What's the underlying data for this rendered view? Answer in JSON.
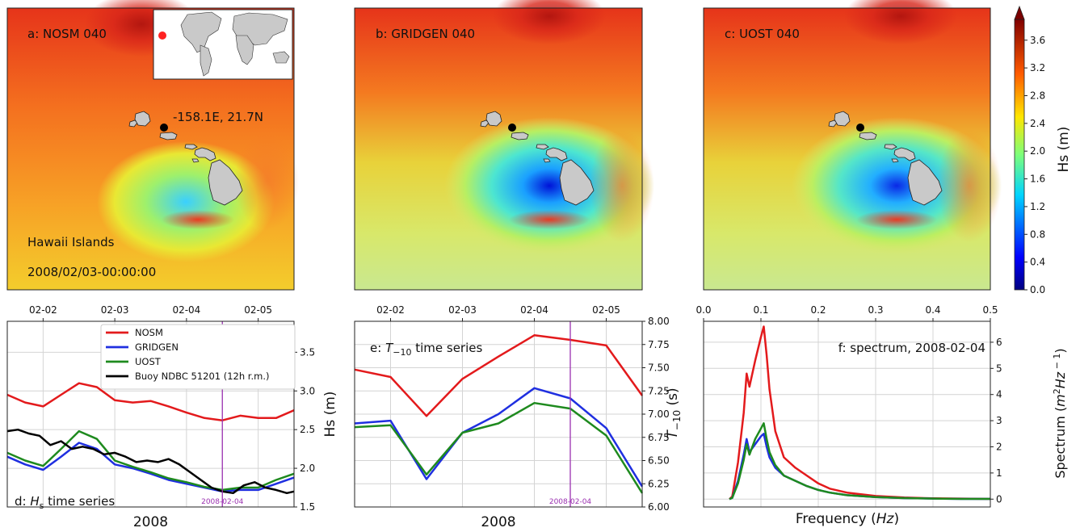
{
  "colors": {
    "nosm": "#e31a1c",
    "gridgen": "#1f2fe0",
    "uost": "#1e8a1e",
    "buoy": "#000000",
    "marker": "#9a30b0",
    "land": "#c9c9c9"
  },
  "maps": [
    {
      "label": "a: NOSM 040",
      "point_label": "-158.1E, 21.7N",
      "region": "Hawaii Islands",
      "time": "2008/02/03-00:00:00"
    },
    {
      "label": "b: GRIDGEN 040"
    },
    {
      "label": "c: UOST 040"
    }
  ],
  "colorbar": {
    "label": "Hs (m)",
    "range": [
      0.0,
      3.9
    ],
    "ticks": [
      "0.0",
      "0.4",
      "0.8",
      "1.2",
      "1.6",
      "2.0",
      "2.4",
      "2.8",
      "3.2",
      "3.6"
    ],
    "colormap": "jet"
  },
  "chart_data": [
    {
      "type": "line",
      "panel_label_pre": "d: ",
      "panel_label_var": "H",
      "panel_label_sub": "s",
      "panel_label_post": " time series",
      "xlabel": "2008",
      "ylabel": "Hs (m)",
      "xlim": [
        1.5,
        5.5
      ],
      "ylim": [
        1.5,
        3.9
      ],
      "x_ticks": [
        "02-02",
        "02-03",
        "02-04",
        "02-05"
      ],
      "y_ticks": [
        "1.5",
        "2.0",
        "2.5",
        "3.0",
        "3.5"
      ],
      "marker_x": 4.5,
      "marker_label": "2008-02-04",
      "legend_position": "top-center",
      "grid": true,
      "series": [
        {
          "name": "NOSM",
          "color_key": "nosm",
          "x": [
            1.5,
            1.75,
            2.0,
            2.25,
            2.5,
            2.75,
            3.0,
            3.25,
            3.5,
            3.75,
            4.0,
            4.25,
            4.5,
            4.75,
            5.0,
            5.25,
            5.5
          ],
          "y": [
            2.95,
            2.85,
            2.8,
            2.95,
            3.1,
            3.05,
            2.88,
            2.85,
            2.87,
            2.8,
            2.72,
            2.65,
            2.62,
            2.68,
            2.65,
            2.65,
            2.75
          ]
        },
        {
          "name": "GRIDGEN",
          "color_key": "gridgen",
          "x": [
            1.5,
            1.75,
            2.0,
            2.25,
            2.5,
            2.75,
            3.0,
            3.25,
            3.5,
            3.75,
            4.0,
            4.25,
            4.5,
            4.75,
            5.0,
            5.25,
            5.5
          ],
          "y": [
            2.15,
            2.05,
            1.98,
            2.15,
            2.33,
            2.25,
            2.05,
            2.0,
            1.93,
            1.85,
            1.8,
            1.75,
            1.7,
            1.72,
            1.72,
            1.8,
            1.88
          ]
        },
        {
          "name": "UOST",
          "color_key": "uost",
          "x": [
            1.5,
            1.75,
            2.0,
            2.25,
            2.5,
            2.75,
            3.0,
            3.25,
            3.5,
            3.75,
            4.0,
            4.25,
            4.5,
            4.75,
            5.0,
            5.25,
            5.5
          ],
          "y": [
            2.2,
            2.1,
            2.03,
            2.25,
            2.48,
            2.38,
            2.1,
            2.02,
            1.95,
            1.87,
            1.82,
            1.76,
            1.72,
            1.75,
            1.75,
            1.85,
            1.93
          ]
        },
        {
          "name": "Buoy NDBC 51201 (12h r.m.)",
          "color_key": "buoy",
          "x": [
            1.5,
            1.65,
            1.8,
            1.95,
            2.1,
            2.25,
            2.4,
            2.55,
            2.7,
            2.85,
            3.0,
            3.15,
            3.3,
            3.45,
            3.6,
            3.75,
            3.9,
            4.05,
            4.2,
            4.35,
            4.5,
            4.65,
            4.8,
            4.95,
            5.1,
            5.25,
            5.4,
            5.5
          ],
          "y": [
            2.48,
            2.5,
            2.45,
            2.42,
            2.3,
            2.35,
            2.25,
            2.28,
            2.25,
            2.18,
            2.2,
            2.15,
            2.08,
            2.1,
            2.08,
            2.12,
            2.05,
            1.95,
            1.85,
            1.75,
            1.7,
            1.68,
            1.78,
            1.82,
            1.75,
            1.72,
            1.68,
            1.7
          ]
        }
      ]
    },
    {
      "type": "line",
      "panel_label_pre": "e: ",
      "panel_label_var": "T",
      "panel_label_sub": "−10",
      "panel_label_post": " time series",
      "xlabel": "2008",
      "ylabel_var": "T",
      "ylabel_sub": "−10",
      "ylabel_post": " (s)",
      "xlim": [
        1.5,
        5.5
      ],
      "ylim": [
        6.0,
        8.0
      ],
      "x_ticks": [
        "02-02",
        "02-03",
        "02-04",
        "02-05"
      ],
      "y_ticks": [
        "6.00",
        "6.25",
        "6.50",
        "6.75",
        "7.00",
        "7.25",
        "7.50",
        "7.75",
        "8.00"
      ],
      "marker_x": 4.5,
      "marker_label": "2008-02-04",
      "grid": true,
      "series": [
        {
          "name": "NOSM",
          "color_key": "nosm",
          "x": [
            1.5,
            2.0,
            2.5,
            3.0,
            3.5,
            4.0,
            4.5,
            5.0,
            5.5
          ],
          "y": [
            7.48,
            7.4,
            6.98,
            7.38,
            7.62,
            7.85,
            7.8,
            7.74,
            7.2
          ]
        },
        {
          "name": "GRIDGEN",
          "color_key": "gridgen",
          "x": [
            1.5,
            2.0,
            2.5,
            3.0,
            3.5,
            4.0,
            4.5,
            5.0,
            5.5
          ],
          "y": [
            6.9,
            6.93,
            6.3,
            6.8,
            7.0,
            7.28,
            7.17,
            6.85,
            6.22
          ]
        },
        {
          "name": "UOST",
          "color_key": "uost",
          "x": [
            1.5,
            2.0,
            2.5,
            3.0,
            3.5,
            4.0,
            4.5,
            5.0,
            5.5
          ],
          "y": [
            6.86,
            6.88,
            6.35,
            6.8,
            6.9,
            7.12,
            7.06,
            6.77,
            6.15
          ]
        }
      ]
    },
    {
      "type": "line",
      "panel_label": "f: spectrum, 2008-02-04",
      "xlabel_pre": "Frequency (",
      "xlabel_var": "Hz",
      "xlabel_post": ")",
      "ylabel_pre": "Spectrum (",
      "ylabel_var": "m",
      "ylabel_sup": "2",
      "ylabel_var2": "Hz",
      "ylabel_sup2": " − 1",
      "ylabel_post": ")",
      "xlim": [
        0.0,
        0.5
      ],
      "ylim": [
        -0.3,
        6.8
      ],
      "x_ticks": [
        "0.0",
        "0.1",
        "0.2",
        "0.3",
        "0.4",
        "0.5"
      ],
      "y_ticks": [
        "0",
        "1",
        "2",
        "3",
        "4",
        "5",
        "6"
      ],
      "grid": true,
      "series": [
        {
          "name": "NOSM",
          "color_key": "nosm",
          "x": [
            0.045,
            0.05,
            0.06,
            0.07,
            0.075,
            0.08,
            0.09,
            0.1,
            0.105,
            0.11,
            0.115,
            0.125,
            0.14,
            0.16,
            0.18,
            0.2,
            0.22,
            0.25,
            0.3,
            0.35,
            0.4,
            0.45,
            0.5
          ],
          "y": [
            0,
            0.1,
            1.4,
            3.3,
            4.8,
            4.3,
            5.3,
            6.2,
            6.6,
            5.5,
            4.2,
            2.6,
            1.6,
            1.2,
            0.9,
            0.6,
            0.4,
            0.25,
            0.12,
            0.06,
            0.03,
            0.02,
            0.01
          ]
        },
        {
          "name": "GRIDGEN",
          "color_key": "gridgen",
          "x": [
            0.045,
            0.05,
            0.06,
            0.07,
            0.075,
            0.08,
            0.09,
            0.1,
            0.105,
            0.11,
            0.115,
            0.125,
            0.14,
            0.16,
            0.18,
            0.2,
            0.22,
            0.25,
            0.3,
            0.35,
            0.4,
            0.45,
            0.5
          ],
          "y": [
            0,
            0.05,
            0.7,
            1.7,
            2.3,
            1.8,
            2.1,
            2.4,
            2.5,
            2.0,
            1.6,
            1.2,
            0.9,
            0.7,
            0.5,
            0.35,
            0.25,
            0.15,
            0.08,
            0.04,
            0.02,
            0.01,
            0.01
          ]
        },
        {
          "name": "UOST",
          "color_key": "uost",
          "x": [
            0.045,
            0.05,
            0.06,
            0.07,
            0.075,
            0.08,
            0.09,
            0.1,
            0.105,
            0.11,
            0.115,
            0.125,
            0.14,
            0.16,
            0.18,
            0.2,
            0.22,
            0.25,
            0.3,
            0.35,
            0.4,
            0.45,
            0.5
          ],
          "y": [
            0,
            0.05,
            0.6,
            1.5,
            2.1,
            1.7,
            2.3,
            2.7,
            2.9,
            2.3,
            1.8,
            1.3,
            0.9,
            0.7,
            0.5,
            0.35,
            0.25,
            0.15,
            0.08,
            0.04,
            0.02,
            0.01,
            0.01
          ]
        }
      ]
    }
  ]
}
